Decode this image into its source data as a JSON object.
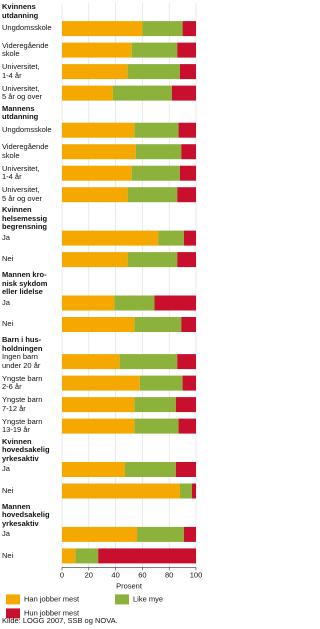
{
  "chart_data": {
    "type": "stacked-bar-horizontal",
    "groups": [
      {
        "name": "Kvinnens\nutdanning",
        "categories": [
          "Ungdomsskole",
          "Videregående\nskole",
          "Universitet,\n1-4 år",
          "Universitet,\n5 år og over"
        ]
      },
      {
        "name": "Mannens\nutdanning",
        "categories": [
          "Ungdomsskole",
          "Videregående\nskole",
          "Universitet,\n1-4 år",
          "Universitet,\n5 år og over"
        ]
      },
      {
        "name": "Kvinnen\nhelsemessig\nbegrensning",
        "categories": [
          "Ja",
          "Nei"
        ]
      },
      {
        "name": "Mannen kro-\nnisk sykdom\neller lidelse",
        "categories": [
          "Ja",
          "Nei"
        ]
      },
      {
        "name": "Barn i hus-\nholdningen",
        "categories": [
          "Ingen barn\nunder 20 år",
          "Yngste barn\n2-6 år",
          "Yngste barn\n7-12 år",
          "Yngste barn\n13-19 år"
        ]
      },
      {
        "name": "Kvinnen\nhovedsakelig\nyrkesaktiv",
        "categories": [
          "Ja",
          "Nei"
        ]
      },
      {
        "name": "Mannen\nhovedsakelig\nyrkesaktiv",
        "categories": [
          "Ja",
          "Nei"
        ]
      }
    ],
    "series": [
      {
        "name": "Han jobber mest",
        "color": "#f5a800",
        "values": [
          60,
          52,
          49,
          38,
          54,
          55,
          52,
          49,
          72,
          49,
          39,
          54,
          43,
          58,
          54,
          54,
          47,
          88,
          56,
          10
        ]
      },
      {
        "name": "Like mye",
        "color": "#8db23c",
        "values": [
          30,
          34,
          39,
          44,
          33,
          34,
          36,
          37,
          19,
          37,
          30,
          35,
          43,
          32,
          31,
          33,
          38,
          9,
          35,
          17
        ]
      },
      {
        "name": "Hun jobber mest",
        "color": "#c8102e",
        "values": [
          10,
          14,
          12,
          18,
          13,
          11,
          12,
          14,
          9,
          14,
          31,
          11,
          14,
          10,
          15,
          13,
          15,
          3,
          9,
          73
        ]
      }
    ],
    "xlim": [
      0,
      100
    ],
    "xticks": [
      0,
      20,
      40,
      60,
      80,
      100
    ],
    "xlabel": "Prosent",
    "grid": true,
    "source": "Kilde: LOGG 2007, SSB og NOVA."
  }
}
